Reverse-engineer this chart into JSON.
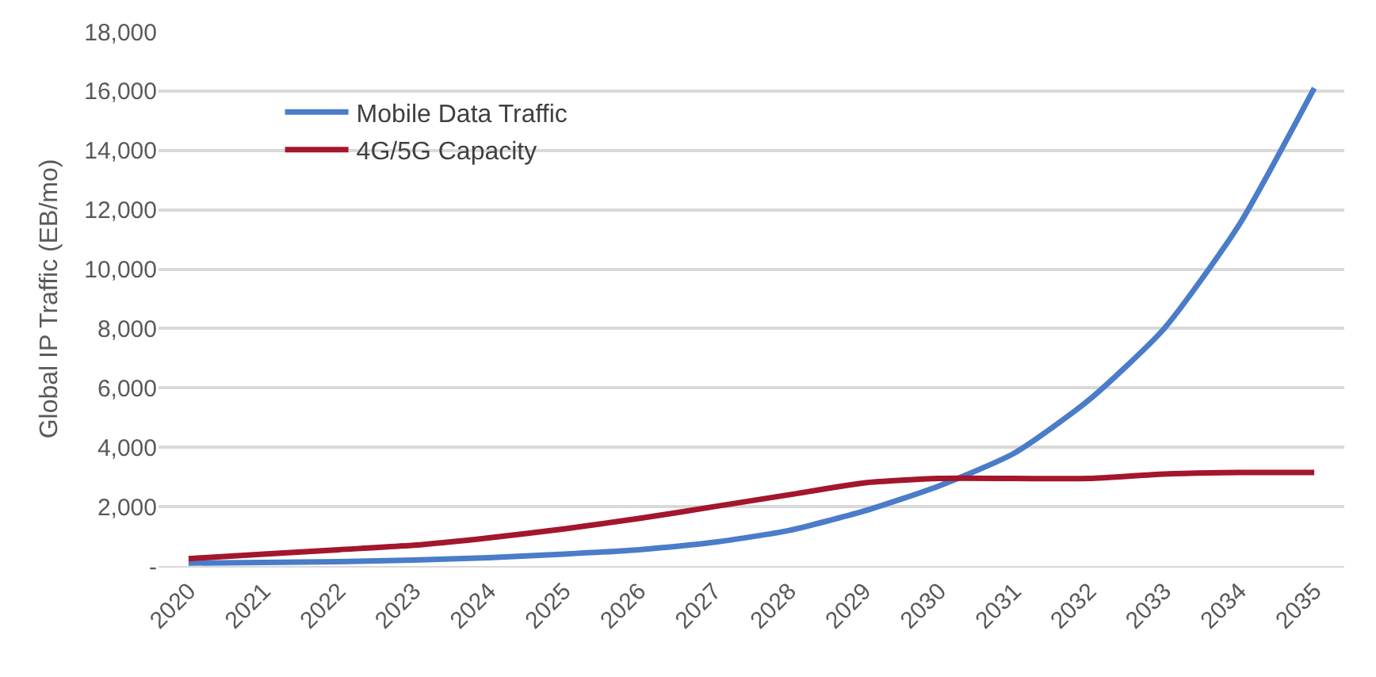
{
  "chart_data": {
    "type": "line",
    "ylabel": "Global IP Traffic (EB/mo)",
    "categories": [
      "2020",
      "2021",
      "2022",
      "2023",
      "2024",
      "2025",
      "2026",
      "2027",
      "2028",
      "2029",
      "2030",
      "2031",
      "2032",
      "2033",
      "2034",
      "2035"
    ],
    "series": [
      {
        "name": "Mobile Data Traffic",
        "color": "#4a7cc9",
        "values": [
          100,
          120,
          150,
          200,
          280,
          400,
          550,
          800,
          1200,
          1850,
          2700,
          3800,
          5600,
          8000,
          11500,
          16100
        ]
      },
      {
        "name": "4G/5G Capacity",
        "color": "#a3162b",
        "values": [
          250,
          400,
          550,
          700,
          950,
          1250,
          1600,
          2000,
          2400,
          2800,
          2950,
          2950,
          2950,
          3100,
          3150,
          3150
        ]
      }
    ],
    "ylim": [
      0,
      18000
    ],
    "yticks": [
      {
        "value": 0,
        "label": "-"
      },
      {
        "value": 2000,
        "label": "2,000"
      },
      {
        "value": 4000,
        "label": "4,000"
      },
      {
        "value": 6000,
        "label": "6,000"
      },
      {
        "value": 8000,
        "label": "8,000"
      },
      {
        "value": 10000,
        "label": "10,000"
      },
      {
        "value": 12000,
        "label": "12,000"
      },
      {
        "value": 14000,
        "label": "14,000"
      },
      {
        "value": 16000,
        "label": "16,000"
      },
      {
        "value": 18000,
        "label": "18,000"
      }
    ],
    "grid": "y",
    "legend": "top left",
    "marker": "none",
    "line_style": "solid"
  }
}
